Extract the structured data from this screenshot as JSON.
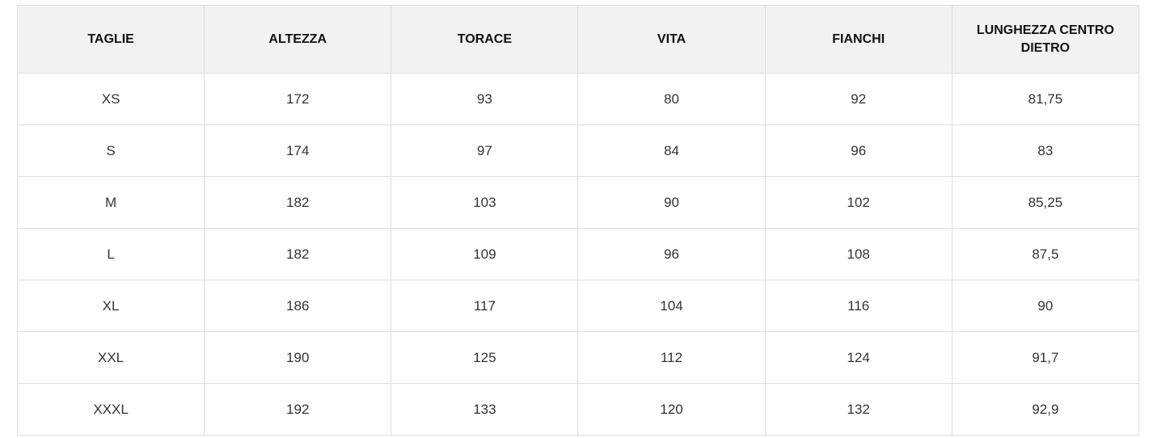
{
  "table": {
    "header": [
      "TAGLIE",
      "ALTEZZA",
      "TORACE",
      "VITA",
      "FIANCHI",
      "LUNGHEZZA CENTRO DIETRO"
    ],
    "rows": [
      [
        "XS",
        "172",
        "93",
        "80",
        "92",
        "81,75"
      ],
      [
        "S",
        "174",
        "97",
        "84",
        "96",
        "83"
      ],
      [
        "M",
        "182",
        "103",
        "90",
        "102",
        "85,25"
      ],
      [
        "L",
        "182",
        "109",
        "96",
        "108",
        "87,5"
      ],
      [
        "XL",
        "186",
        "117",
        "104",
        "116",
        "90"
      ],
      [
        "XXL",
        "190",
        "125",
        "112",
        "124",
        "91,7"
      ],
      [
        "XXXL",
        "192",
        "133",
        "120",
        "132",
        "92,9"
      ]
    ]
  }
}
